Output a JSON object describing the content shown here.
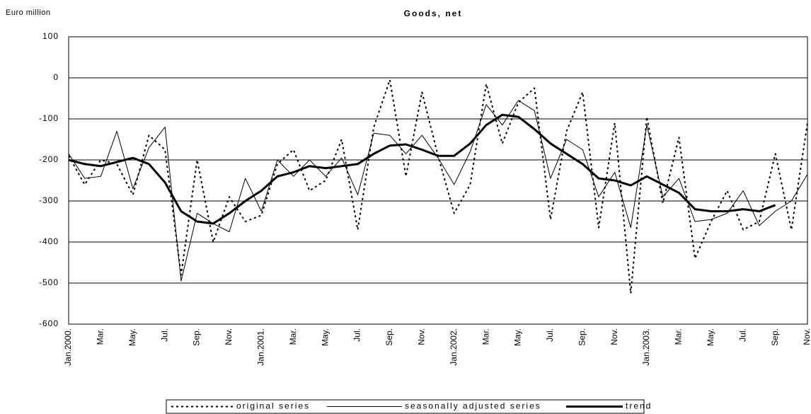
{
  "chart_data": {
    "type": "line",
    "title": "Goods, net",
    "y_label": "Euro million",
    "categories": [
      "Jan.2000.",
      null,
      "Mar.",
      null,
      "May.",
      null,
      "Jul.",
      null,
      "Sep.",
      null,
      "Nov.",
      null,
      "Jan.2001.",
      null,
      "Mar.",
      null,
      "May.",
      null,
      "Jul.",
      null,
      "Sep.",
      null,
      "Nov.",
      null,
      "Jan.2002.",
      null,
      "Mar.",
      null,
      "May.",
      null,
      "Jul.",
      null,
      "Sep.",
      null,
      "Nov.",
      null,
      "Jan.2003.",
      null,
      "Mar.",
      null,
      "May.",
      null,
      "Jul.",
      null,
      "Sep.",
      null,
      "Nov."
    ],
    "series": [
      {
        "name": "original series",
        "color": "#000000",
        "style": "dotted",
        "width": 2,
        "values": [
          -190,
          -260,
          -200,
          -210,
          -285,
          -140,
          -175,
          -480,
          -200,
          -400,
          -290,
          -350,
          -335,
          -210,
          -175,
          -275,
          -250,
          -150,
          -370,
          -120,
          -5,
          -240,
          -35,
          -190,
          -330,
          -260,
          -15,
          -160,
          -60,
          -25,
          -345,
          -130,
          -35,
          -365,
          -110,
          -525,
          -95,
          -305,
          -145,
          -440,
          -350,
          -275,
          -370,
          -350,
          -185,
          -370,
          -110
        ]
      },
      {
        "name": "seasonally adjusted series",
        "color": "#000000",
        "style": "solid",
        "width": 1,
        "values": [
          -185,
          -245,
          -240,
          -130,
          -270,
          -170,
          -120,
          -495,
          -330,
          -355,
          -375,
          -245,
          -325,
          -200,
          -240,
          -200,
          -240,
          -195,
          -285,
          -135,
          -140,
          -185,
          -140,
          -195,
          -260,
          -180,
          -65,
          -115,
          -55,
          -80,
          -245,
          -150,
          -175,
          -290,
          -230,
          -365,
          -115,
          -290,
          -245,
          -350,
          -345,
          -330,
          -275,
          -360,
          -325,
          -300,
          -235
        ]
      },
      {
        "name": "trend",
        "color": "#000000",
        "style": "solid",
        "width": 3,
        "values": [
          -200,
          -210,
          -215,
          -205,
          -195,
          -210,
          -255,
          -325,
          -350,
          -355,
          -330,
          -300,
          -275,
          -240,
          -230,
          -215,
          -220,
          -215,
          -210,
          -185,
          -165,
          -162,
          -175,
          -190,
          -190,
          -160,
          -115,
          -90,
          -95,
          -125,
          -160,
          -185,
          -210,
          -245,
          -250,
          -262,
          -240,
          -260,
          -280,
          -320,
          -325,
          -325,
          -320,
          -325,
          -310,
          null,
          null
        ]
      }
    ],
    "ylim": [
      -600,
      100
    ],
    "yticks": [
      -600,
      -500,
      -400,
      -300,
      -200,
      -100,
      0,
      100
    ],
    "grid": true,
    "legend": "bottom"
  }
}
